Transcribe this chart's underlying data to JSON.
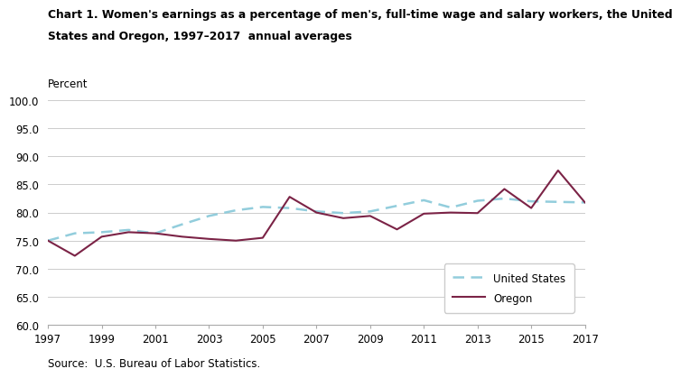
{
  "title_line1": "Chart 1. Women's earnings as a percentage of men's, full-time wage and salary workers, the United",
  "title_line2": "States and Oregon, 1997–2017  annual averages",
  "ylabel": "Percent",
  "source": "Source:  U.S. Bureau of Labor Statistics.",
  "years": [
    1997,
    1998,
    1999,
    2000,
    2001,
    2002,
    2003,
    2004,
    2005,
    2006,
    2007,
    2008,
    2009,
    2010,
    2011,
    2012,
    2013,
    2014,
    2015,
    2016,
    2017
  ],
  "us_data": [
    75.0,
    76.3,
    76.5,
    76.9,
    76.3,
    77.9,
    79.4,
    80.4,
    81.0,
    80.8,
    80.2,
    79.9,
    80.2,
    81.2,
    82.2,
    80.9,
    82.1,
    82.5,
    82.0,
    81.9,
    81.8
  ],
  "oregon_data": [
    75.0,
    72.3,
    75.7,
    76.5,
    76.3,
    75.7,
    75.3,
    75.0,
    75.5,
    82.8,
    80.0,
    79.0,
    79.4,
    77.0,
    79.8,
    80.0,
    79.9,
    84.2,
    80.8,
    87.5,
    81.8
  ],
  "ylim": [
    60.0,
    100.0
  ],
  "yticks": [
    60.0,
    65.0,
    70.0,
    75.0,
    80.0,
    85.0,
    90.0,
    95.0,
    100.0
  ],
  "us_color": "#92CDDC",
  "oregon_color": "#7B2346",
  "grid_color": "#CCCCCC",
  "title_fontsize": 8.8,
  "ylabel_fontsize": 8.5,
  "tick_fontsize": 8.5,
  "legend_fontsize": 8.5,
  "source_fontsize": 8.5
}
